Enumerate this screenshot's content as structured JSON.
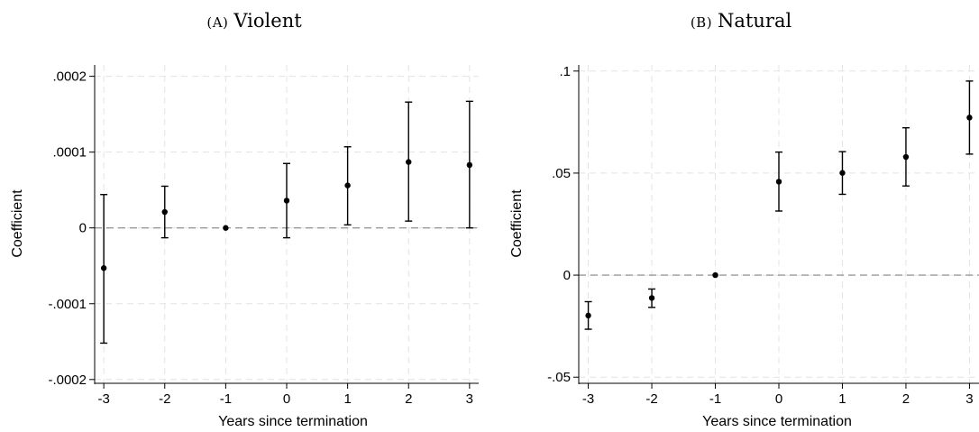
{
  "chart_data": [
    {
      "type": "scatter",
      "panel_label": "(A)",
      "title": "Violent",
      "xlabel": "Years since termination",
      "ylabel": "Coefficient",
      "x_ticks": [
        -3,
        -2,
        -1,
        0,
        1,
        2,
        3
      ],
      "x_tick_labels": [
        "-3",
        "-2",
        "-1",
        "0",
        "1",
        "2",
        "3"
      ],
      "y_ticks": [
        -0.0002,
        -0.0001,
        0,
        0.0001,
        0.0002
      ],
      "y_tick_labels": [
        "-.0002",
        "-.0001",
        "0",
        ".0001",
        ".0002"
      ],
      "xlim": [
        -3.15,
        3.15
      ],
      "ylim": [
        -0.000205,
        0.000215
      ],
      "grid": true,
      "reference_line_y": 0,
      "series": [
        {
          "x": [
            -3,
            -2,
            -1,
            0,
            1,
            2,
            3
          ],
          "y": [
            -5.3e-05,
            2.1e-05,
            0,
            3.6e-05,
            5.6e-05,
            8.7e-05,
            8.3e-05
          ],
          "ci_low": [
            -0.000152,
            -1.3e-05,
            0,
            -1.3e-05,
            4e-06,
            9e-06,
            0
          ],
          "ci_high": [
            4.4e-05,
            5.5e-05,
            0,
            8.5e-05,
            0.000107,
            0.000166,
            0.000167
          ]
        }
      ],
      "colors": {
        "marker": "#000000",
        "grid": "#e3e3e3",
        "ref_line": "#9a9a9a",
        "axis": "#000000"
      }
    },
    {
      "type": "scatter",
      "panel_label": "(B)",
      "title": "Natural",
      "xlabel": "Years since termination",
      "ylabel": "Coefficient",
      "x_ticks": [
        -3,
        -2,
        -1,
        0,
        1,
        2,
        3
      ],
      "x_tick_labels": [
        "-3",
        "-2",
        "-1",
        "0",
        "1",
        "2",
        "3"
      ],
      "y_ticks": [
        -0.05,
        0,
        0.05,
        0.1
      ],
      "y_tick_labels": [
        "-.05",
        "0",
        ".05",
        ".1"
      ],
      "xlim": [
        -3.15,
        3.15
      ],
      "ylim": [
        -0.053,
        0.103
      ],
      "grid": true,
      "reference_line_y": 0,
      "series": [
        {
          "x": [
            -3,
            -2,
            -1,
            0,
            1,
            2,
            3
          ],
          "y": [
            -0.0198,
            -0.0112,
            0,
            0.0458,
            0.0501,
            0.0579,
            0.0772
          ],
          "ci_low": [
            -0.0265,
            -0.0158,
            0,
            0.0314,
            0.0396,
            0.0437,
            0.0593
          ],
          "ci_high": [
            -0.013,
            -0.0068,
            0,
            0.0603,
            0.0605,
            0.0722,
            0.0951
          ]
        }
      ],
      "colors": {
        "marker": "#000000",
        "grid": "#e3e3e3",
        "ref_line": "#9a9a9a",
        "axis": "#000000"
      }
    }
  ]
}
